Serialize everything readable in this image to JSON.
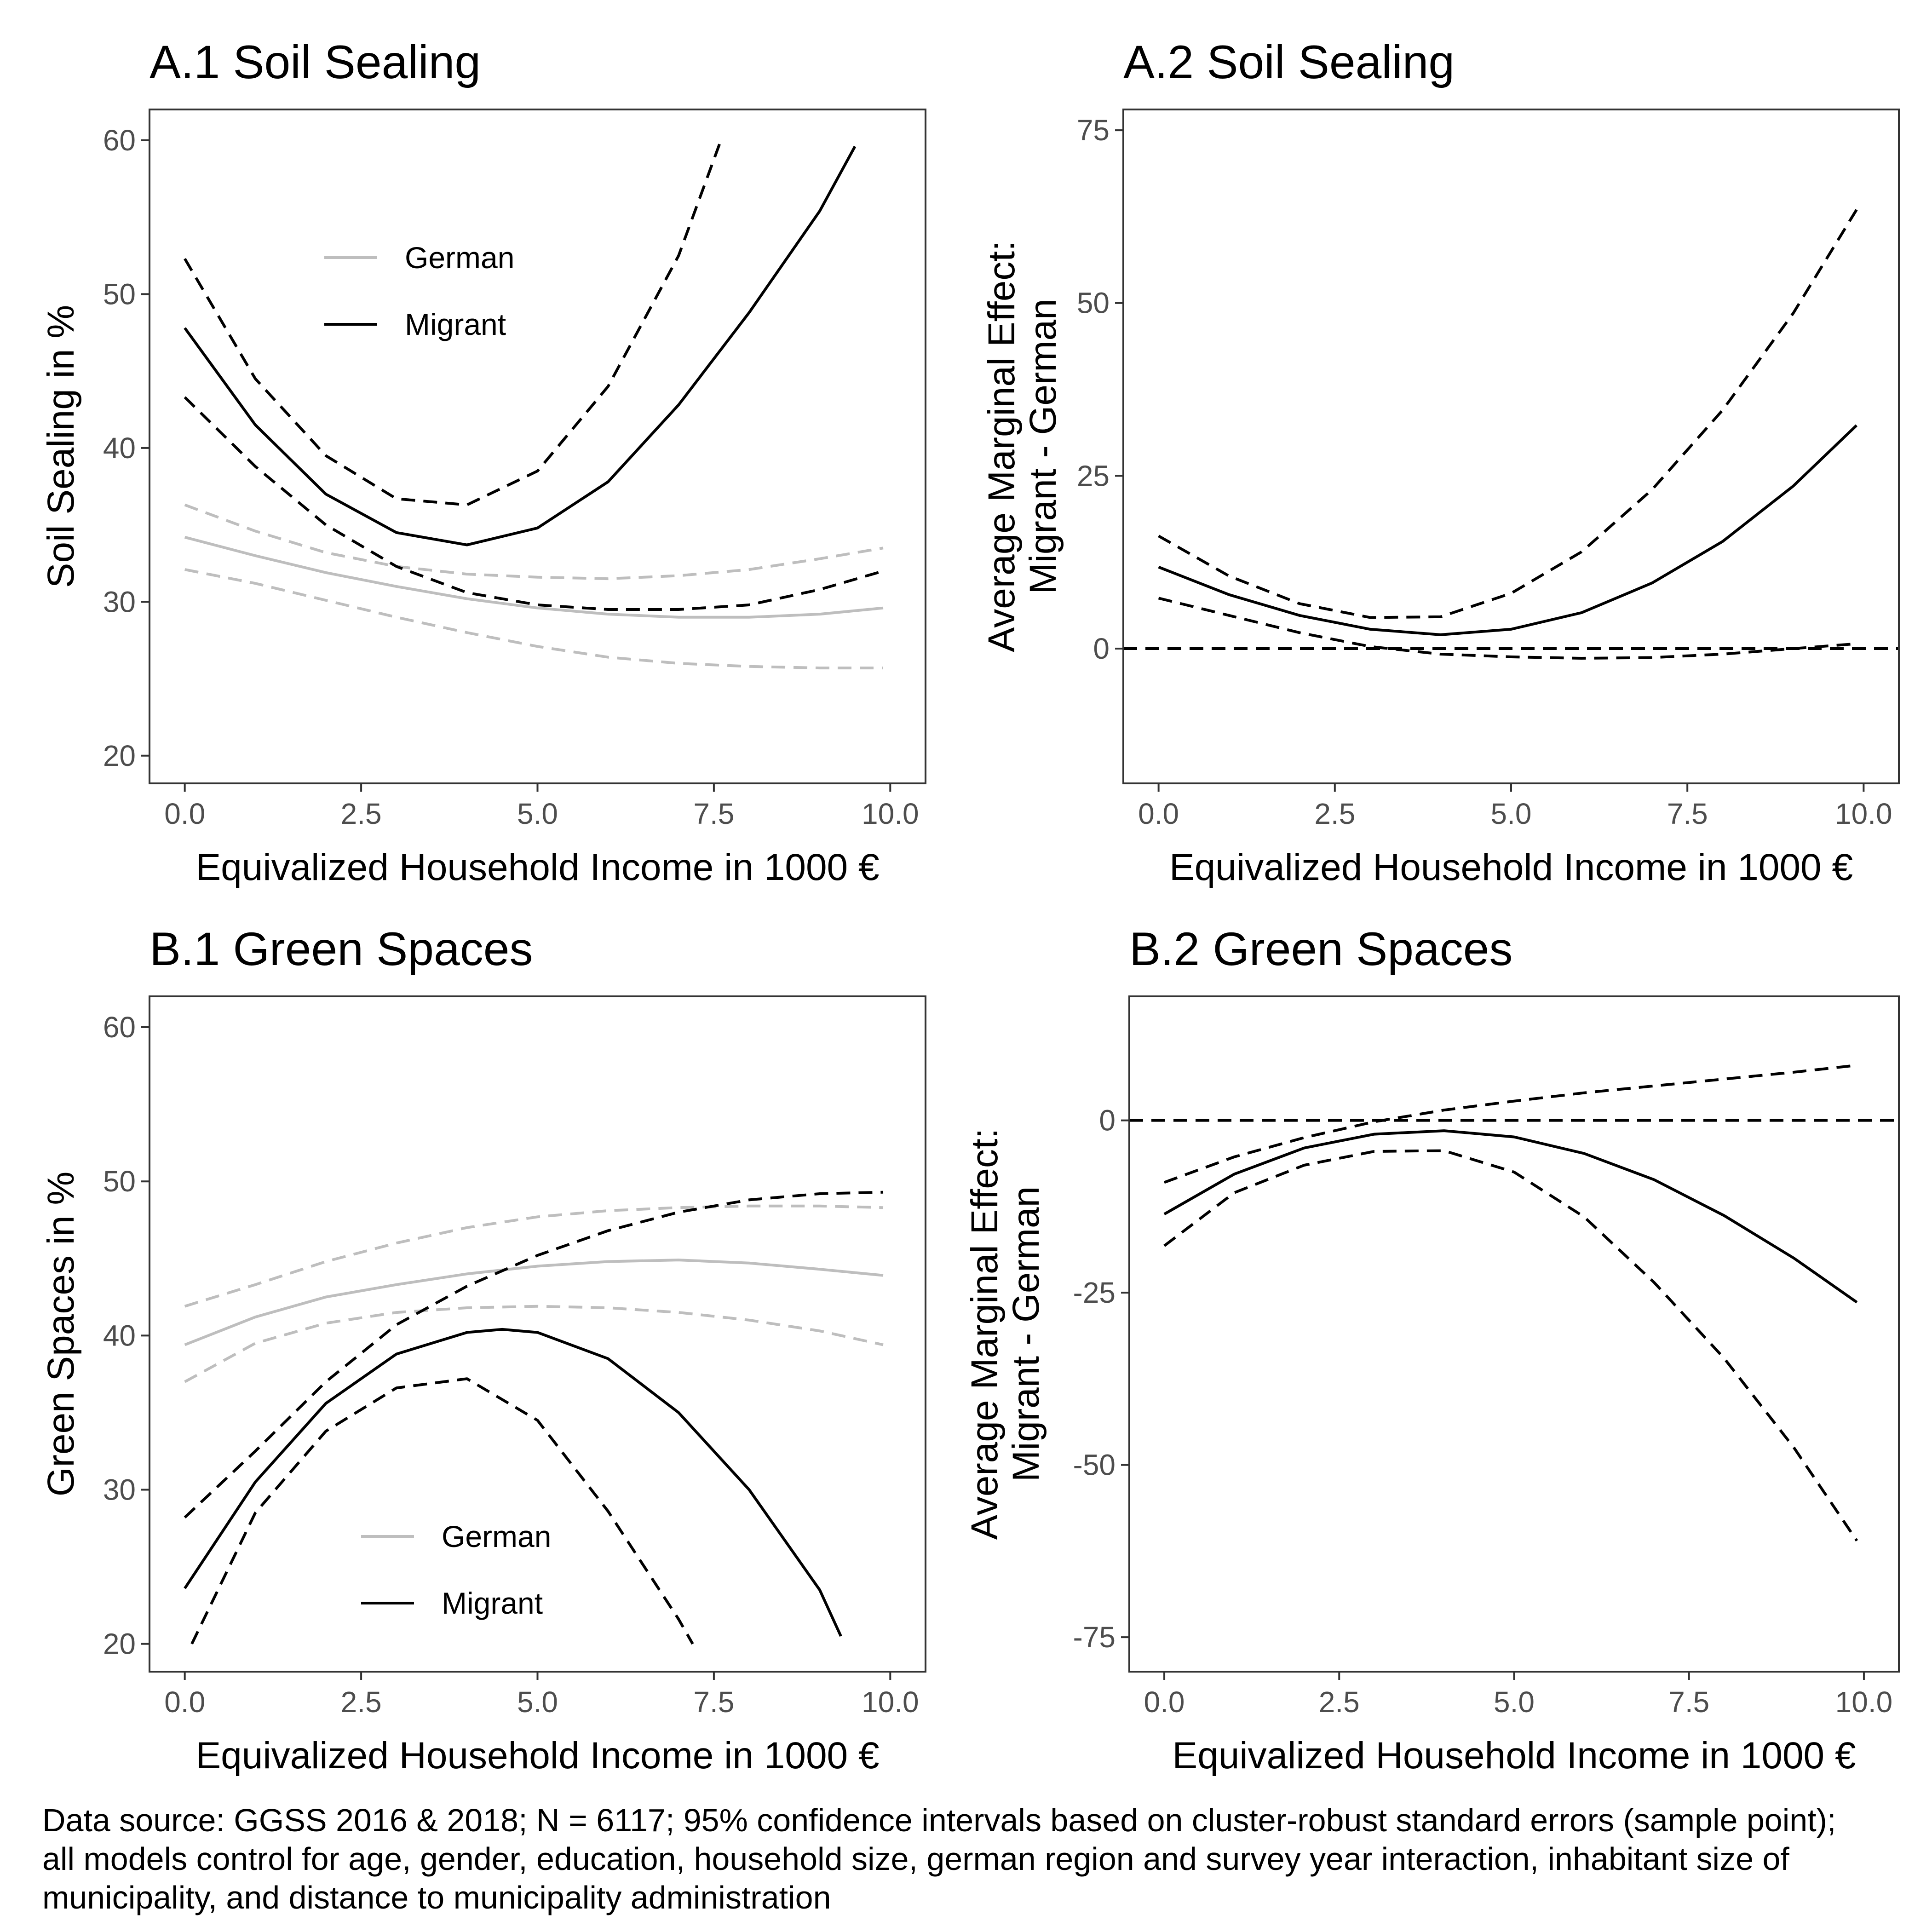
{
  "caption_lines": [
    "Data source: GGSS 2016 & 2018; N = 6117; 95% confidence intervals based on cluster-robust standard errors (sample point);",
    "all models control for age, gender, education, household size, german region and survey year interaction, inhabitant size of",
    "municipality, and distance to municipality administration"
  ],
  "colors": {
    "german": "#bebebe",
    "migrant": "#000000",
    "axis": "#333333",
    "tick_text": "#4d4d4d"
  },
  "chart_data": [
    {
      "type": "line",
      "title": "A.1 Soil Sealing",
      "xlabel": "Equivalized Household Income in 1000 €",
      "ylabel": [
        "Soil Sealing in %"
      ],
      "xlim": [
        -0.5,
        10.5
      ],
      "ylim": [
        18.2,
        62
      ],
      "xticks": [
        0,
        2.5,
        5,
        7.5,
        10
      ],
      "xtick_labels": [
        "0.0",
        "2.5",
        "5.0",
        "7.5",
        "10.0"
      ],
      "yticks": [
        20,
        30,
        40,
        50,
        60
      ],
      "ytick_labels": [
        "20",
        "30",
        "40",
        "50",
        "60"
      ],
      "legend": {
        "position": "top-left",
        "entries": [
          {
            "label": "German",
            "color": "#bebebe"
          },
          {
            "label": "Migrant",
            "color": "#000000"
          }
        ]
      },
      "series": [
        {
          "name": "German",
          "role": "estimate",
          "color": "#bebebe",
          "dash": "solid",
          "x": [
            0,
            1,
            2,
            3,
            4,
            5,
            6,
            7,
            8,
            9,
            9.9
          ],
          "y": [
            34.2,
            33.0,
            31.9,
            31.0,
            30.2,
            29.6,
            29.2,
            29.0,
            29.0,
            29.2,
            29.6
          ]
        },
        {
          "role": "ci",
          "color": "#bebebe",
          "dash": "dashed",
          "x": [
            0,
            1,
            2,
            3,
            4,
            5,
            6,
            7,
            8,
            9,
            9.9
          ],
          "y": [
            36.3,
            34.6,
            33.2,
            32.3,
            31.8,
            31.6,
            31.5,
            31.7,
            32.1,
            32.8,
            33.5
          ]
        },
        {
          "role": "ci",
          "color": "#bebebe",
          "dash": "dashed",
          "x": [
            0,
            1,
            2,
            3,
            4,
            5,
            6,
            7,
            8,
            9,
            9.9
          ],
          "y": [
            32.1,
            31.2,
            30.1,
            29.0,
            28.0,
            27.1,
            26.4,
            26.0,
            25.8,
            25.7,
            25.7
          ]
        },
        {
          "name": "Migrant",
          "role": "estimate",
          "color": "#000000",
          "dash": "solid",
          "x": [
            0,
            1,
            2,
            3,
            4,
            5,
            6,
            7,
            8,
            9,
            9.5
          ],
          "y": [
            47.8,
            41.5,
            37.0,
            34.5,
            33.7,
            34.8,
            37.8,
            42.8,
            48.8,
            55.4,
            59.6
          ]
        },
        {
          "role": "ci",
          "color": "#000000",
          "dash": "dashed",
          "x": [
            0,
            1,
            2,
            3,
            4,
            5,
            6,
            7,
            7.6
          ],
          "y": [
            52.3,
            44.5,
            39.5,
            36.7,
            36.3,
            38.5,
            44.0,
            52.5,
            60.0
          ]
        },
        {
          "role": "ci",
          "color": "#000000",
          "dash": "dashed",
          "x": [
            0,
            1,
            2,
            3,
            4,
            5,
            6,
            7,
            8,
            9,
            9.9
          ],
          "y": [
            43.3,
            38.8,
            35.0,
            32.3,
            30.6,
            29.8,
            29.5,
            29.5,
            29.8,
            30.8,
            32.0
          ]
        }
      ]
    },
    {
      "type": "line",
      "title": "A.2 Soil Sealing",
      "xlabel": "Equivalized Household Income in 1000 €",
      "ylabel": [
        "Average Marginal Effect:",
        "Migrant - German"
      ],
      "xlim": [
        -0.5,
        10.5
      ],
      "ylim": [
        -19.5,
        78
      ],
      "xticks": [
        0,
        2.5,
        5,
        7.5,
        10
      ],
      "xtick_labels": [
        "0.0",
        "2.5",
        "5.0",
        "7.5",
        "10.0"
      ],
      "yticks": [
        0,
        25,
        50,
        75
      ],
      "ytick_labels": [
        "0",
        "25",
        "50",
        "75"
      ],
      "reference_line": 0,
      "series": [
        {
          "role": "estimate",
          "color": "#000000",
          "dash": "solid",
          "x": [
            0,
            1,
            2,
            3,
            4,
            5,
            6,
            7,
            8,
            9,
            9.9
          ],
          "y": [
            11.8,
            7.8,
            4.8,
            2.8,
            2.0,
            2.8,
            5.2,
            9.5,
            15.5,
            23.5,
            32.3
          ]
        },
        {
          "role": "ci",
          "color": "#000000",
          "dash": "dashed",
          "x": [
            0,
            1,
            2,
            3,
            4,
            5,
            6,
            7,
            8,
            9,
            9.9
          ],
          "y": [
            16.3,
            10.5,
            6.5,
            4.5,
            4.6,
            8.0,
            14.0,
            23.0,
            34.5,
            48.5,
            63.5
          ]
        },
        {
          "role": "ci",
          "color": "#000000",
          "dash": "dashed",
          "x": [
            0,
            1,
            2,
            3,
            4,
            5,
            6,
            7,
            8,
            9,
            9.9
          ],
          "y": [
            7.3,
            4.8,
            2.3,
            0.3,
            -0.8,
            -1.2,
            -1.4,
            -1.3,
            -0.8,
            0.0,
            0.7
          ]
        }
      ]
    },
    {
      "type": "line",
      "title": "B.1 Green Spaces",
      "xlabel": "Equivalized Household Income in 1000 €",
      "ylabel": [
        "Green Spaces in %"
      ],
      "xlim": [
        -0.5,
        10.5
      ],
      "ylim": [
        18.2,
        62
      ],
      "xticks": [
        0,
        2.5,
        5,
        7.5,
        10
      ],
      "xtick_labels": [
        "0.0",
        "2.5",
        "5.0",
        "7.5",
        "10.0"
      ],
      "yticks": [
        20,
        30,
        40,
        50,
        60
      ],
      "ytick_labels": [
        "20",
        "30",
        "40",
        "50",
        "60"
      ],
      "legend": {
        "position": "bottom-center",
        "entries": [
          {
            "label": "German",
            "color": "#bebebe"
          },
          {
            "label": "Migrant",
            "color": "#000000"
          }
        ]
      },
      "series": [
        {
          "name": "German",
          "role": "estimate",
          "color": "#bebebe",
          "dash": "solid",
          "x": [
            0,
            1,
            2,
            3,
            4,
            5,
            6,
            7,
            8,
            9,
            9.9
          ],
          "y": [
            39.4,
            41.2,
            42.5,
            43.3,
            44.0,
            44.5,
            44.8,
            44.9,
            44.7,
            44.3,
            43.9
          ]
        },
        {
          "role": "ci",
          "color": "#bebebe",
          "dash": "dashed",
          "x": [
            0,
            1,
            2,
            3,
            4,
            5,
            6,
            7,
            8,
            9,
            9.9
          ],
          "y": [
            41.9,
            43.3,
            44.8,
            46.0,
            47.0,
            47.7,
            48.1,
            48.3,
            48.4,
            48.4,
            48.3
          ]
        },
        {
          "role": "ci",
          "color": "#bebebe",
          "dash": "dashed",
          "x": [
            0,
            1,
            2,
            3,
            4,
            5,
            6,
            7,
            8,
            9,
            9.9
          ],
          "y": [
            37.0,
            39.5,
            40.8,
            41.5,
            41.8,
            41.9,
            41.8,
            41.5,
            41.0,
            40.3,
            39.4
          ]
        },
        {
          "name": "Migrant",
          "role": "estimate",
          "color": "#000000",
          "dash": "solid",
          "x": [
            0,
            1,
            2,
            3,
            4,
            4.5,
            5,
            6,
            7,
            8,
            9,
            9.3
          ],
          "y": [
            23.6,
            30.5,
            35.6,
            38.8,
            40.2,
            40.4,
            40.2,
            38.5,
            35.0,
            30.0,
            23.5,
            20.5
          ]
        },
        {
          "role": "ci",
          "color": "#000000",
          "dash": "dashed",
          "x": [
            0,
            1,
            2,
            3,
            4,
            5,
            6,
            7,
            8,
            9,
            9.9
          ],
          "y": [
            28.2,
            32.5,
            37.0,
            40.7,
            43.2,
            45.2,
            46.8,
            48.0,
            48.8,
            49.2,
            49.3
          ]
        },
        {
          "role": "ci",
          "color": "#000000",
          "dash": "dashed",
          "x": [
            0.1,
            1,
            2,
            3,
            4,
            5,
            6,
            7,
            7.2
          ],
          "y": [
            20.0,
            28.5,
            33.8,
            36.6,
            37.2,
            34.5,
            28.6,
            21.6,
            20.0
          ]
        }
      ]
    },
    {
      "type": "line",
      "title": "B.2 Green Spaces",
      "xlabel": "Equivalized Household Income in 1000 €",
      "ylabel": [
        "Average Marginal Effect:",
        "Migrant - German"
      ],
      "xlim": [
        -0.5,
        10.5
      ],
      "ylim": [
        -80,
        18
      ],
      "xticks": [
        0,
        2.5,
        5,
        7.5,
        10
      ],
      "xtick_labels": [
        "0.0",
        "2.5",
        "5.0",
        "7.5",
        "10.0"
      ],
      "yticks": [
        -75,
        -50,
        -25,
        0
      ],
      "ytick_labels": [
        "-75",
        "-50",
        "-25",
        "0"
      ],
      "reference_line": 0,
      "series": [
        {
          "role": "estimate",
          "color": "#000000",
          "dash": "solid",
          "x": [
            0,
            1,
            2,
            3,
            4,
            5,
            6,
            7,
            8,
            9,
            9.9
          ],
          "y": [
            -13.6,
            -7.8,
            -4.0,
            -2.0,
            -1.5,
            -2.4,
            -4.8,
            -8.6,
            -13.8,
            -20.0,
            -26.4
          ]
        },
        {
          "role": "ci",
          "color": "#000000",
          "dash": "dashed",
          "x": [
            0,
            1,
            2,
            3,
            4,
            5,
            6,
            7,
            8,
            9,
            9.9
          ],
          "y": [
            -9.0,
            -5.3,
            -2.5,
            -0.2,
            1.5,
            2.8,
            4.0,
            5.0,
            6.0,
            7.0,
            8.0
          ]
        },
        {
          "role": "ci",
          "color": "#000000",
          "dash": "dashed",
          "x": [
            0,
            1,
            2,
            3,
            4,
            5,
            6,
            7,
            8,
            9,
            9.9
          ],
          "y": [
            -18.2,
            -10.5,
            -6.5,
            -4.5,
            -4.4,
            -7.5,
            -14.0,
            -23.5,
            -34.5,
            -47.5,
            -61.0
          ]
        }
      ]
    }
  ]
}
